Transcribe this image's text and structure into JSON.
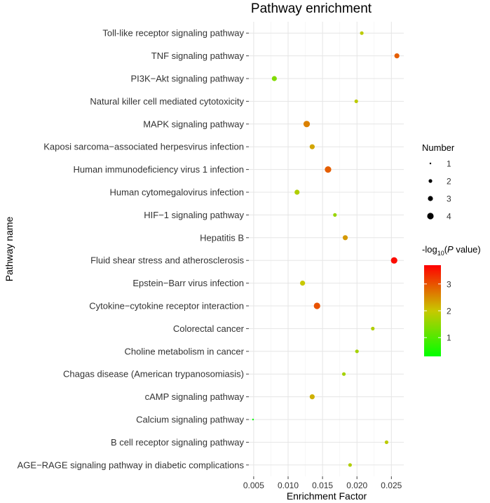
{
  "chart_data": {
    "type": "scatter",
    "title": "Pathway enrichment",
    "xlabel": "Enrichment Factor",
    "ylabel": "Pathway name",
    "xlim": [
      0.0043,
      0.0268
    ],
    "xticks": [
      0.005,
      0.01,
      0.015,
      0.02,
      0.025
    ],
    "xtick_labels": [
      "0.005",
      "0.010",
      "0.015",
      "0.020",
      "0.025"
    ],
    "grid": true,
    "points": [
      {
        "pathway": "Toll-like receptor signaling pathway",
        "x": 0.0207,
        "number": 2,
        "neglog10p": 1.9
      },
      {
        "pathway": "TNF signaling pathway",
        "x": 0.0258,
        "number": 3,
        "neglog10p": 2.9
      },
      {
        "pathway": "PI3K−Akt signaling pathway",
        "x": 0.008,
        "number": 3,
        "neglog10p": 1.4
      },
      {
        "pathway": "Natural killer cell mediated cytotoxicity",
        "x": 0.0199,
        "number": 2,
        "neglog10p": 1.9
      },
      {
        "pathway": "MAPK signaling pathway",
        "x": 0.0127,
        "number": 4,
        "neglog10p": 2.6
      },
      {
        "pathway": "Kaposi sarcoma−associated herpesvirus infection",
        "x": 0.0135,
        "number": 3,
        "neglog10p": 2.3
      },
      {
        "pathway": "Human immunodeficiency virus 1 infection",
        "x": 0.0158,
        "number": 4,
        "neglog10p": 2.9
      },
      {
        "pathway": "Human cytomegalovirus infection",
        "x": 0.0113,
        "number": 3,
        "neglog10p": 1.8
      },
      {
        "pathway": "HIF−1 signaling pathway",
        "x": 0.0168,
        "number": 2,
        "neglog10p": 1.6
      },
      {
        "pathway": "Hepatitis B",
        "x": 0.0183,
        "number": 3,
        "neglog10p": 2.4
      },
      {
        "pathway": "Fluid shear stress and atherosclerosis",
        "x": 0.0254,
        "number": 4,
        "neglog10p": 3.6
      },
      {
        "pathway": "Epstein−Barr virus infection",
        "x": 0.0121,
        "number": 3,
        "neglog10p": 2.0
      },
      {
        "pathway": "Cytokine−cytokine receptor interaction",
        "x": 0.0142,
        "number": 4,
        "neglog10p": 3.0
      },
      {
        "pathway": "Colorectal cancer",
        "x": 0.0223,
        "number": 2,
        "neglog10p": 1.8
      },
      {
        "pathway": "Choline metabolism in cancer",
        "x": 0.02,
        "number": 2,
        "neglog10p": 1.7
      },
      {
        "pathway": "Chagas disease (American trypanosomiasis)",
        "x": 0.0181,
        "number": 2,
        "neglog10p": 1.7
      },
      {
        "pathway": "cAMP signaling pathway",
        "x": 0.0135,
        "number": 3,
        "neglog10p": 2.2
      },
      {
        "pathway": "Calcium signaling pathway",
        "x": 0.0049,
        "number": 1,
        "neglog10p": 0.3
      },
      {
        "pathway": "B cell receptor signaling pathway",
        "x": 0.0243,
        "number": 2,
        "neglog10p": 1.9
      },
      {
        "pathway": "AGE−RAGE signaling pathway in diabetic complications",
        "x": 0.019,
        "number": 2,
        "neglog10p": 1.8
      }
    ],
    "size_legend": {
      "title": "Number",
      "values": [
        1,
        2,
        3,
        4
      ],
      "labels": [
        "1",
        "2",
        "3",
        "4"
      ]
    },
    "color_legend": {
      "title_prefix": "-log",
      "title_sub": "10",
      "title_paren_open": "(",
      "title_italic": "P",
      "title_suffix": " value)",
      "range": [
        0.3,
        3.7
      ],
      "ticks": [
        1,
        2,
        3
      ],
      "tick_labels": [
        "1",
        "2",
        "3"
      ],
      "low_color": "#00FF00",
      "mid_color": "#C8C800",
      "high_color": "#FF0000"
    }
  }
}
